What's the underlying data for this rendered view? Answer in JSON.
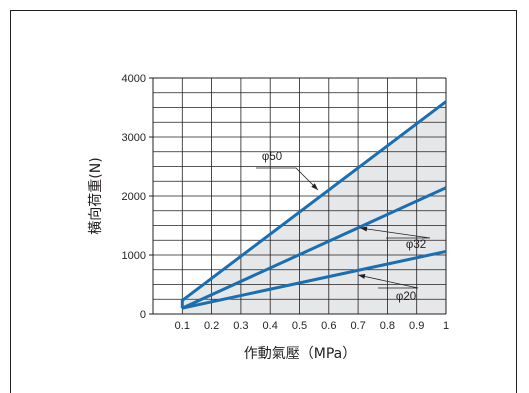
{
  "chart_data": {
    "type": "line",
    "xlabel": "作動氣壓（MPa）",
    "ylabel": "橫向荷重(N)",
    "xlim": [
      0,
      1
    ],
    "ylim": [
      0,
      4000
    ],
    "x_ticks": [
      "0.1",
      "0.2",
      "0.3",
      "0.4",
      "0.5",
      "0.6",
      "0.7",
      "0.8",
      "0.9",
      "1"
    ],
    "y_ticks": [
      "0",
      "1000",
      "2000",
      "3000",
      "4000"
    ],
    "grid": true,
    "series": [
      {
        "name": "φ50",
        "color": "#1a6fb3",
        "x": [
          0.1,
          0.1,
          1.0
        ],
        "y": [
          100,
          230,
          3600
        ]
      },
      {
        "name": "φ32",
        "color": "#1a6fb3",
        "x": [
          0.1,
          1.0
        ],
        "y": [
          100,
          2140
        ]
      },
      {
        "name": "φ20",
        "color": "#1a6fb3",
        "x": [
          0.1,
          1.0
        ],
        "y": [
          100,
          1060
        ]
      }
    ],
    "shaded_region": {
      "color": "#e6e7e8",
      "description_series": "φ50"
    }
  }
}
